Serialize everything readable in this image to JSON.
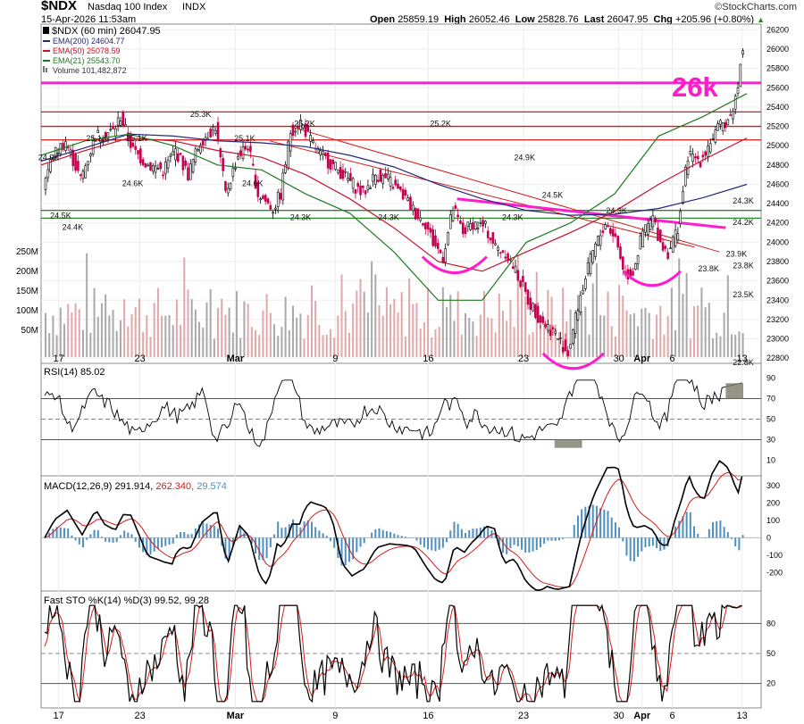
{
  "header": {
    "symbol": "$NDX",
    "name": "Nasdaq 100 Index",
    "exchange": "INDX",
    "timestamp": "15-Apr-2026 11:53am",
    "open_label": "Open",
    "open": "25859.19",
    "high_label": "High",
    "high": "26052.46",
    "low_label": "Low",
    "low": "25828.76",
    "last_label": "Last",
    "last": "26047.95",
    "chg_label": "Chg",
    "chg": "+205.96 (+0.80%)",
    "brand": "©StockCharts.com"
  },
  "legend": {
    "symbol_line": "$NDX (60 min) 26047.95",
    "ema200": "EMA(200) 24604.77",
    "ema50": "EMA(50) 25078.59",
    "ema21": "EMA(21) 25543.70",
    "volume": "Volume 101,482,872"
  },
  "annotation": {
    "big_label": "26k"
  },
  "panels": {
    "rsi_label": "RSI(14) 85.02",
    "macd_label": "MACD(12,26,9)",
    "macd_value": "291.914,",
    "macd_signal": "262.340,",
    "macd_hist": "29.574",
    "sto_label": "Fast STO %K(14) %D(3) 99.52, 99.28"
  },
  "colors": {
    "magenta": "#ff1ccd",
    "red_line": "#d61a1a",
    "green_line": "#2a8a2a",
    "ema200": "#26267a",
    "ema50": "#c8102e",
    "ema21": "#1f7a1f",
    "up_candle": "#000000",
    "down_candle": "#c4004f",
    "macd_hist": "#4f8fc0",
    "rsi_fill": "#7a7a6a"
  },
  "chart_data": [
    {
      "type": "line",
      "title": "$NDX (60 min)",
      "x_ticks": [
        "17",
        "23",
        "Mar",
        "9",
        "16",
        "23",
        "30",
        "Apr",
        "6",
        "13"
      ],
      "y_ticks": [
        "26200",
        "26000",
        "25800",
        "25600",
        "25400",
        "25200",
        "25000",
        "24800",
        "24600",
        "24400",
        "24200",
        "24000",
        "23800",
        "23600",
        "23400",
        "23200",
        "23000",
        "22800"
      ],
      "volume_ticks": [
        "250M",
        "200M",
        "150M",
        "100M",
        "50M"
      ],
      "ylim": [
        22700,
        26250
      ],
      "series": [
        {
          "name": "EMA(200)",
          "values": [
            24840,
            24980,
            25120,
            25100,
            25050,
            25030,
            24990,
            24900,
            24780,
            24600,
            24450,
            24330,
            24280,
            24290,
            24350,
            24460,
            24600
          ]
        },
        {
          "name": "EMA(50)",
          "values": [
            24800,
            24950,
            25080,
            25050,
            24950,
            24880,
            24700,
            24450,
            24150,
            23800,
            23700,
            23900,
            24100,
            24320,
            24600,
            24850,
            25080
          ]
        },
        {
          "name": "EMA(21)",
          "values": [
            24900,
            25050,
            25120,
            25000,
            24800,
            24750,
            24500,
            24300,
            23900,
            23400,
            23400,
            24000,
            24200,
            24500,
            25100,
            25300,
            25540
          ]
        }
      ],
      "price_labels": [
        "24.5K",
        "24.4K",
        "24.9K",
        "25.1K",
        "25.1K",
        "25.3K",
        "24.6K",
        "24.6K",
        "25.1K",
        "24.3K",
        "25.2K",
        "24.3K",
        "25.2K",
        "24.3K",
        "24.9K",
        "24.5K",
        "24.3K",
        "23.8K",
        "23.9K",
        "24.2K",
        "24.3K",
        "23.5K",
        "23.8K",
        "22.8K"
      ],
      "horizontal_levels": [
        25650,
        25350,
        25200,
        25060,
        24330,
        24250
      ]
    },
    {
      "type": "line",
      "title": "RSI(14)",
      "y_ticks": [
        "90",
        "70",
        "50",
        "30",
        "10"
      ],
      "ylim": [
        0,
        100
      ],
      "last": 85.02
    },
    {
      "type": "line",
      "title": "MACD(12,26,9)",
      "y_ticks": [
        "300",
        "200",
        "100",
        "0",
        "-100",
        "-200"
      ],
      "ylim": [
        -280,
        310
      ],
      "values": {
        "macd": 291.914,
        "signal": 262.34,
        "histogram": 29.574
      }
    },
    {
      "type": "line",
      "title": "Fast STO %K(14) %D(3)",
      "y_ticks": [
        "80",
        "50",
        "20"
      ],
      "ylim": [
        0,
        100
      ],
      "values": {
        "k": 99.52,
        "d": 99.28
      }
    }
  ]
}
